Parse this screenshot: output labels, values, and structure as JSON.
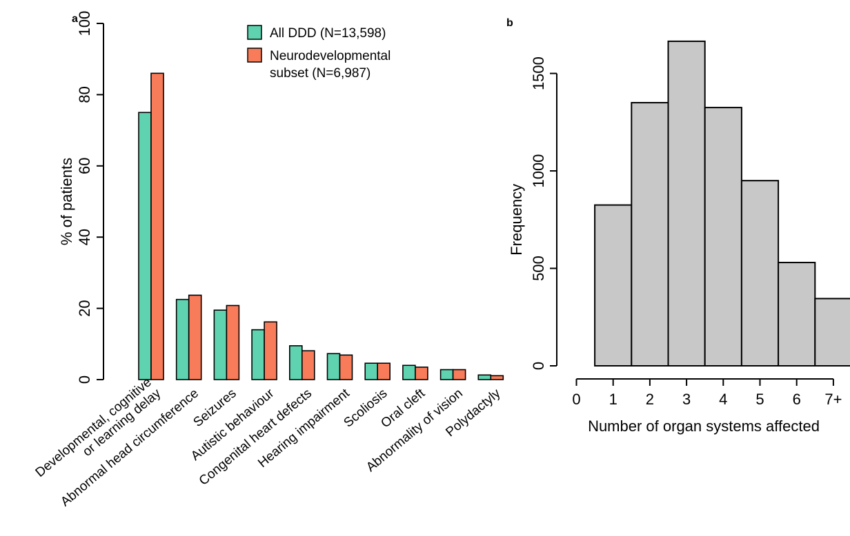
{
  "panel_a_label": "a",
  "panel_b_label": "b",
  "colors": {
    "all_ddd": "#5fd3b0",
    "neuro": "#f97c5a",
    "hist_fill": "#c8c8c8",
    "stroke": "#000000"
  },
  "chart_data": [
    {
      "type": "bar",
      "panel": "a",
      "ylabel": "% of patients",
      "ylim": [
        0,
        100
      ],
      "yticks": [
        "0",
        "20",
        "40",
        "60",
        "80",
        "100"
      ],
      "categories": [
        "Developmental, cognitive\nor learning delay",
        "Abnormal head circumference",
        "Seizures",
        "Autistic behaviour",
        "Congenital heart defects",
        "Hearing impairment",
        "Scoliosis",
        "Oral cleft",
        "Abnormality of vision",
        "Polydactyly"
      ],
      "series": [
        {
          "name": "All DDD (N=13,598)",
          "values": [
            75.0,
            22.5,
            19.5,
            14.0,
            9.5,
            7.3,
            4.6,
            4.0,
            2.8,
            1.3
          ]
        },
        {
          "name": "Neurodevelopmental\nsubset (N=6,987)",
          "values": [
            86.0,
            23.7,
            20.8,
            16.2,
            8.1,
            6.9,
            4.6,
            3.5,
            2.8,
            1.1
          ]
        }
      ],
      "legend_position": "top-right"
    },
    {
      "type": "bar",
      "panel": "b",
      "subtype": "histogram",
      "xlabel": "Number of organ systems affected",
      "ylabel": "Frequency",
      "ylim": [
        0,
        1700
      ],
      "yticks": [
        "0",
        "500",
        "1000",
        "1500"
      ],
      "categories": [
        "0",
        "1",
        "2",
        "3",
        "4",
        "5",
        "6",
        "7+"
      ],
      "values": [
        0,
        825,
        1350,
        1665,
        1325,
        950,
        530,
        345
      ]
    }
  ]
}
